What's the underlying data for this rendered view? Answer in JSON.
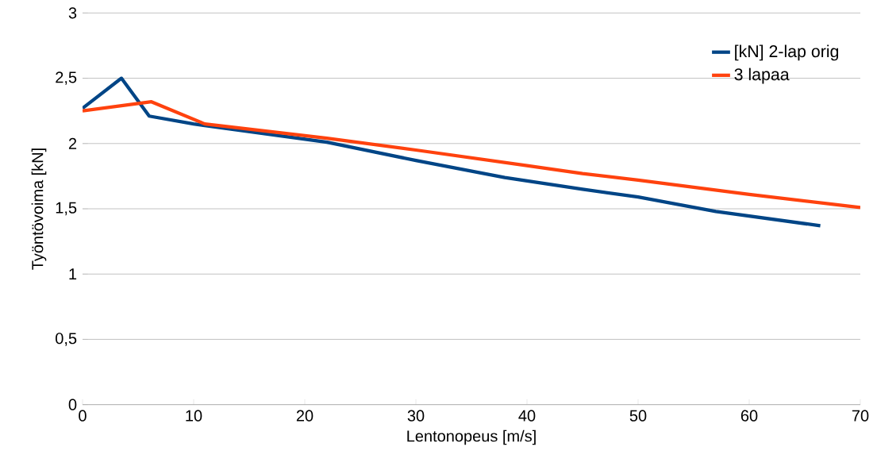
{
  "chart_data": {
    "type": "line",
    "xlabel": "Lentonopeus [m/s]",
    "ylabel": "Työntövoima [kN]",
    "xlim": [
      0,
      70
    ],
    "ylim": [
      0,
      3
    ],
    "xticks": [
      0,
      10,
      20,
      30,
      40,
      50,
      60,
      70
    ],
    "yticks": [
      0,
      {
        "value": 0.5,
        "label": "0,5"
      },
      1,
      {
        "value": 1.5,
        "label": "1,5"
      },
      2,
      {
        "value": 2.5,
        "label": "2,5"
      },
      3
    ],
    "grid": "y",
    "legend": "top right",
    "marker": "none",
    "line_style": "solid",
    "series": [
      {
        "name": "[kN] 2-lap orig",
        "color": "#004586",
        "x": [
          0,
          3.5,
          6,
          10,
          22,
          30,
          38,
          45,
          50,
          57,
          66.4
        ],
        "values": [
          2.27,
          2.5,
          2.21,
          2.15,
          2.01,
          1.87,
          1.74,
          1.65,
          1.59,
          1.48,
          1.37
        ]
      },
      {
        "name": "3 lapaa",
        "color": "#ff420e",
        "x": [
          0,
          6.2,
          11,
          22,
          30,
          40,
          45,
          50,
          60,
          70
        ],
        "values": [
          2.25,
          2.32,
          2.15,
          2.04,
          1.95,
          1.83,
          1.77,
          1.72,
          1.61,
          1.51
        ]
      }
    ]
  }
}
